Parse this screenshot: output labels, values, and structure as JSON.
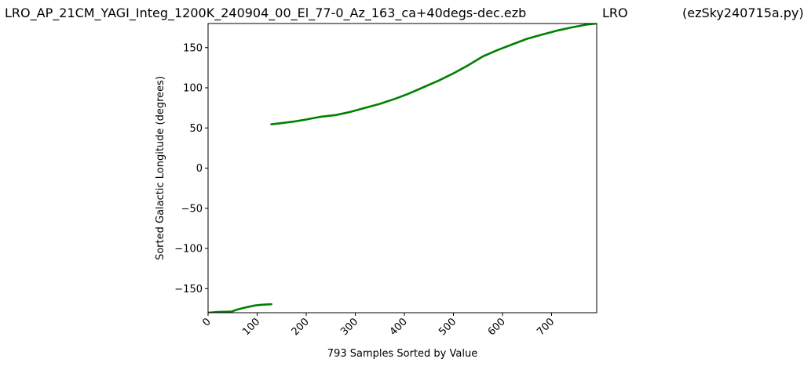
{
  "header": {
    "file_title": "LRO_AP_21CM_YAGI_Integ_1200K_240904_00_El_77-0_Az_163_ca+40degs-dec.ezb",
    "station": "LRO",
    "program": "(ezSky240715a.py)"
  },
  "chart_data": {
    "type": "line",
    "xlabel": "793 Samples Sorted by Value",
    "ylabel": "Sorted Galactic Longitude (degrees)",
    "xlim": [
      0,
      792
    ],
    "ylim": [
      -180,
      180
    ],
    "xticks": [
      0,
      100,
      200,
      300,
      400,
      500,
      600,
      700
    ],
    "yticks": [
      -150,
      -100,
      -50,
      0,
      50,
      100,
      150
    ],
    "grid": false,
    "line_color": "#008000",
    "series": [
      {
        "points": [
          [
            0,
            -180
          ],
          [
            20,
            -179
          ],
          [
            48,
            -178.5
          ],
          [
            60,
            -176
          ],
          [
            80,
            -173
          ],
          [
            95,
            -171
          ],
          [
            110,
            -170
          ],
          [
            129,
            -169.5
          ],
          [
            129,
            54.5
          ],
          [
            150,
            56
          ],
          [
            175,
            58
          ],
          [
            200,
            60.5
          ],
          [
            230,
            64
          ],
          [
            260,
            66
          ],
          [
            290,
            70
          ],
          [
            320,
            75
          ],
          [
            350,
            80
          ],
          [
            380,
            86
          ],
          [
            410,
            93
          ],
          [
            440,
            101
          ],
          [
            470,
            109
          ],
          [
            500,
            118
          ],
          [
            530,
            128
          ],
          [
            560,
            139
          ],
          [
            590,
            147
          ],
          [
            620,
            154
          ],
          [
            650,
            161
          ],
          [
            680,
            166
          ],
          [
            710,
            171
          ],
          [
            740,
            175
          ],
          [
            770,
            178.5
          ],
          [
            792,
            180
          ]
        ]
      }
    ]
  }
}
